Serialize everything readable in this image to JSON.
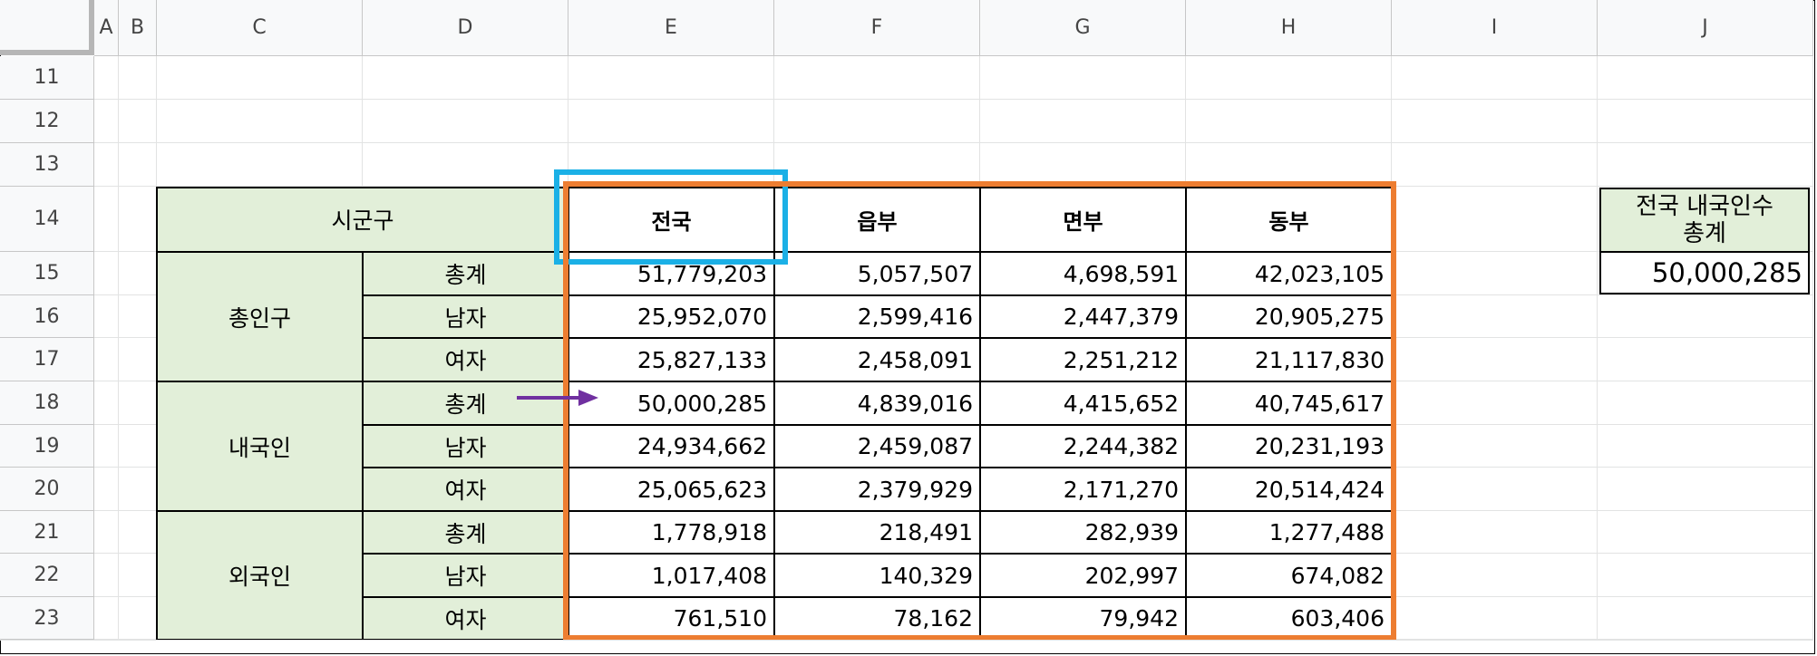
{
  "columns": [
    "A",
    "B",
    "C",
    "D",
    "E",
    "F",
    "G",
    "H",
    "I",
    "J"
  ],
  "rows": [
    "11",
    "12",
    "13",
    "14",
    "15",
    "16",
    "17",
    "18",
    "19",
    "20",
    "21",
    "22",
    "23"
  ],
  "table": {
    "region_header": "시군구",
    "col_headers": [
      "전국",
      "읍부",
      "면부",
      "동부"
    ],
    "groups": [
      {
        "name": "총인구",
        "rows": [
          {
            "label": "총계",
            "values": [
              "51,779,203",
              "5,057,507",
              "4,698,591",
              "42,023,105"
            ]
          },
          {
            "label": "남자",
            "values": [
              "25,952,070",
              "2,599,416",
              "2,447,379",
              "20,905,275"
            ]
          },
          {
            "label": "여자",
            "values": [
              "25,827,133",
              "2,458,091",
              "2,251,212",
              "21,117,830"
            ]
          }
        ]
      },
      {
        "name": "내국인",
        "rows": [
          {
            "label": "총계",
            "values": [
              "50,000,285",
              "4,839,016",
              "4,415,652",
              "40,745,617"
            ]
          },
          {
            "label": "남자",
            "values": [
              "24,934,662",
              "2,459,087",
              "2,244,382",
              "20,231,193"
            ]
          },
          {
            "label": "여자",
            "values": [
              "25,065,623",
              "2,379,929",
              "2,171,270",
              "20,514,424"
            ]
          }
        ]
      },
      {
        "name": "외국인",
        "rows": [
          {
            "label": "총계",
            "values": [
              "1,778,918",
              "218,491",
              "282,939",
              "1,277,488"
            ]
          },
          {
            "label": "남자",
            "values": [
              "1,017,408",
              "140,329",
              "202,997",
              "674,082"
            ]
          },
          {
            "label": "여자",
            "values": [
              "761,510",
              "78,162",
              "79,942",
              "603,406"
            ]
          }
        ]
      }
    ]
  },
  "summary": {
    "label_line1": "전국 내국인수",
    "label_line2": "총계",
    "value": "50,000,285"
  },
  "colors": {
    "header_fill": "#e2efd9",
    "highlight_blue": "#1bb0e6",
    "highlight_orange": "#ed7d31",
    "arrow_purple": "#7030a0"
  }
}
